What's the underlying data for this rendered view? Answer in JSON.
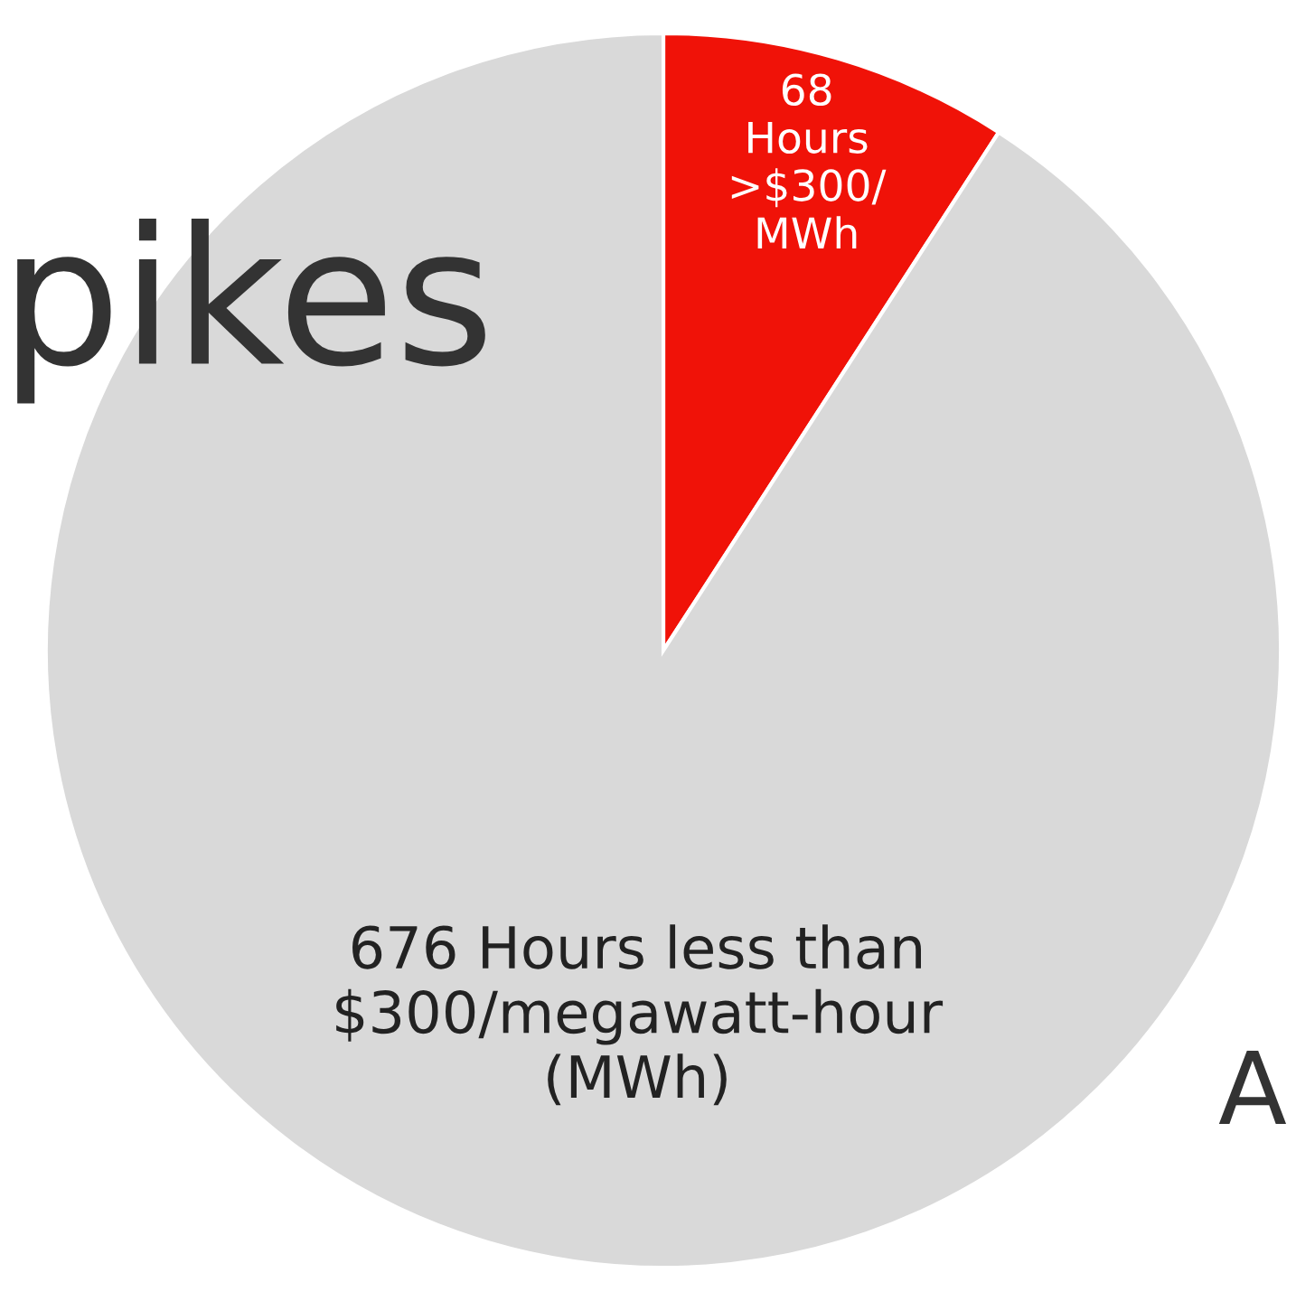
{
  "chart_data": {
    "type": "pie",
    "categories": [
      null,
      null
    ],
    "values": [
      68,
      676
    ],
    "colors": [
      "#f01208",
      "#d9d9d9"
    ],
    "value_labels": [
      "68\nHours\n>$300/\nMWh",
      "676 Hours less than\n$300/megawatt-hour\n(MWh)"
    ],
    "annotations": [
      "pikes",
      "A"
    ],
    "legend": false
  }
}
